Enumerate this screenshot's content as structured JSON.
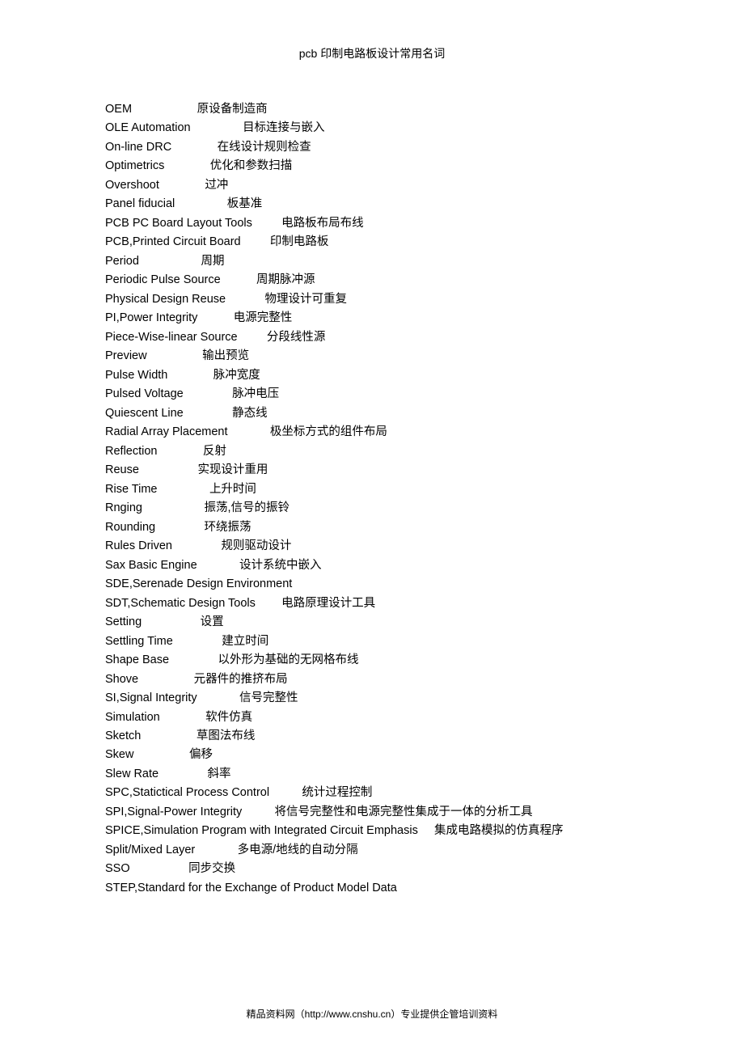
{
  "title": "pcb 印制电路板设计常用名词",
  "footer": "精品资料网（http://www.cnshu.cn）专业提供企管培训资料",
  "terms": [
    {
      "en": "OEM",
      "sep": "                    ",
      "zh": "原设备制造商"
    },
    {
      "en": "OLE Automation",
      "sep": "                ",
      "zh": "目标连接与嵌入"
    },
    {
      "en": "On-line DRC",
      "sep": "              ",
      "zh": "在线设计规则检查"
    },
    {
      "en": "Optimetrics",
      "sep": "              ",
      "zh": "优化和参数扫描"
    },
    {
      "en": "Overshoot",
      "sep": "              ",
      "zh": "过冲"
    },
    {
      "en": "Panel fiducial",
      "sep": "                ",
      "zh": "板基准"
    },
    {
      "en": "PCB PC Board Layout Tools",
      "sep": "         ",
      "zh": "电路板布局布线"
    },
    {
      "en": "PCB,Printed Circuit Board",
      "sep": "         ",
      "zh": "印制电路板"
    },
    {
      "en": "Period",
      "sep": "                   ",
      "zh": "周期"
    },
    {
      "en": "Periodic Pulse Source",
      "sep": "           ",
      "zh": "周期脉冲源"
    },
    {
      "en": "Physical Design Reuse",
      "sep": "            ",
      "zh": "物理设计可重复"
    },
    {
      "en": "PI,Power Integrity",
      "sep": "           ",
      "zh": "电源完整性"
    },
    {
      "en": "Piece-Wise-linear Source",
      "sep": "         ",
      "zh": "分段线性源"
    },
    {
      "en": "Preview",
      "sep": "                 ",
      "zh": "输出预览"
    },
    {
      "en": "Pulse Width",
      "sep": "              ",
      "zh": "脉冲宽度"
    },
    {
      "en": "Pulsed Voltage",
      "sep": "               ",
      "zh": "脉冲电压"
    },
    {
      "en": "Quiescent Line",
      "sep": "               ",
      "zh": "静态线"
    },
    {
      "en": "Radial Array Placement",
      "sep": "             ",
      "zh": "极坐标方式的组件布局"
    },
    {
      "en": "Reflection",
      "sep": "              ",
      "zh": "反射"
    },
    {
      "en": "Reuse",
      "sep": "                  ",
      "zh": "实现设计重用"
    },
    {
      "en": "Rise Time",
      "sep": "                ",
      "zh": "上升时间"
    },
    {
      "en": "Rnging",
      "sep": "                   ",
      "zh": "振荡,信号的振铃"
    },
    {
      "en": "Rounding",
      "sep": "               ",
      "zh": "环绕振荡"
    },
    {
      "en": "Rules Driven",
      "sep": "               ",
      "zh": "规则驱动设计"
    },
    {
      "en": "Sax Basic Engine",
      "sep": "             ",
      "zh": "设计系统中嵌入"
    },
    {
      "en": "SDE,Serenade Design Environment",
      "sep": "",
      "zh": ""
    },
    {
      "en": "SDT,Schematic Design Tools",
      "sep": "        ",
      "zh": "电路原理设计工具"
    },
    {
      "en": "Setting",
      "sep": "                  ",
      "zh": "设置"
    },
    {
      "en": "Settling Time",
      "sep": "               ",
      "zh": "建立时间"
    },
    {
      "en": "Shape Base",
      "sep": "               ",
      "zh": "以外形为基础的无网格布线"
    },
    {
      "en": "Shove",
      "sep": "                 ",
      "zh": "元器件的推挤布局"
    },
    {
      "en": "SI,Signal Integrity",
      "sep": "             ",
      "zh": "信号完整性"
    },
    {
      "en": "Simulation",
      "sep": "              ",
      "zh": "软件仿真"
    },
    {
      "en": "Sketch",
      "sep": "                 ",
      "zh": "草图法布线"
    },
    {
      "en": "Skew",
      "sep": "                 ",
      "zh": "偏移"
    },
    {
      "en": "Slew Rate",
      "sep": "               ",
      "zh": "斜率"
    },
    {
      "en": "SPC,Statictical Process Control",
      "sep": "          ",
      "zh": "统计过程控制"
    },
    {
      "en": "SPI,Signal-Power Integrity",
      "sep": "          ",
      "zh": "将信号完整性和电源完整性集成于一体的分析工具"
    },
    {
      "en": "SPICE,Simulation Program with Integrated Circuit Emphasis",
      "sep": "     ",
      "zh": "集成电路模拟的仿真程序"
    },
    {
      "en": "Split/Mixed Layer",
      "sep": "             ",
      "zh": "多电源/地线的自动分隔"
    },
    {
      "en": "SSO",
      "sep": "                  ",
      "zh": "同步交换"
    },
    {
      "en": "STEP,Standard for the Exchange of Product Model Data",
      "sep": "",
      "zh": ""
    }
  ]
}
